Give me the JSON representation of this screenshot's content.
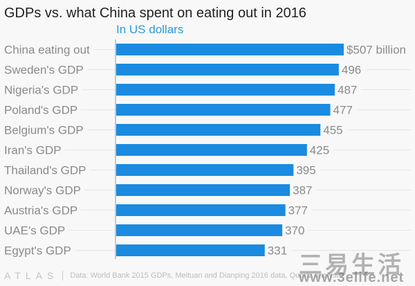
{
  "chart_data": {
    "type": "bar",
    "orientation": "horizontal",
    "title": "GDPs vs. what China spent on eating out in 2016",
    "subtitle": "In US dollars",
    "categories": [
      "China eating out",
      "Sweden's GDP",
      "Nigeria's GDP",
      "Poland's GDP",
      "Belgium's GDP",
      "Iran's GDP",
      "Thailand's GDP",
      "Norway's GDP",
      "Austria's GDP",
      "UAE's GDP",
      "Egypt's GDP"
    ],
    "values": [
      507,
      496,
      487,
      477,
      455,
      425,
      395,
      387,
      377,
      370,
      331
    ],
    "value_labels": [
      "$507 billion",
      "496",
      "487",
      "477",
      "455",
      "425",
      "395",
      "387",
      "377",
      "370",
      "331"
    ],
    "unit": "billion USD",
    "xlim": [
      0,
      507
    ],
    "grid": true,
    "bar_color": "#1a8be0"
  },
  "footer": {
    "logo": "ATLAS",
    "source": "Data: World Bank 2015 GDPs, Meituan and Dianping 2016 data, Quartz analysis"
  },
  "watermark": {
    "text": "三易生活",
    "url": "www.3elife.net"
  }
}
